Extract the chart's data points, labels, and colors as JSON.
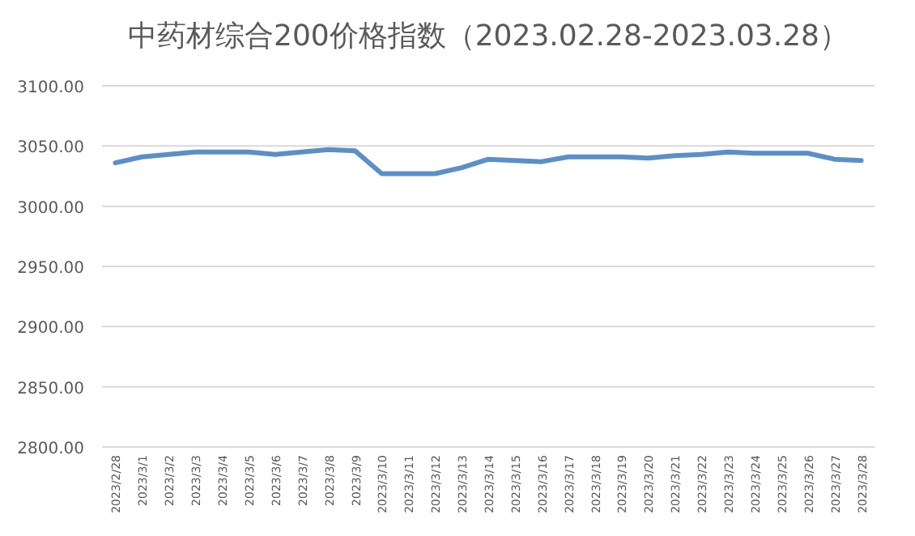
{
  "chart_data": {
    "type": "line",
    "title": "中药材综合200价格指数（2023.02.28-2023.03.28）",
    "categories": [
      "2023/2/28",
      "2023/3/1",
      "2023/3/2",
      "2023/3/3",
      "2023/3/4",
      "2023/3/5",
      "2023/3/6",
      "2023/3/7",
      "2023/3/8",
      "2023/3/9",
      "2023/3/10",
      "2023/3/11",
      "2023/3/12",
      "2023/3/13",
      "2023/3/14",
      "2023/3/15",
      "2023/3/16",
      "2023/3/17",
      "2023/3/18",
      "2023/3/19",
      "2023/3/20",
      "2023/3/21",
      "2023/3/22",
      "2023/3/23",
      "2023/3/24",
      "2023/3/25",
      "2023/3/26",
      "2023/3/27",
      "2023/3/28"
    ],
    "series": [
      {
        "color": "#5b8fc7",
        "values": [
          3036,
          3041,
          3043,
          3045,
          3045,
          3045,
          3043,
          3045,
          3047,
          3046,
          3027,
          3027,
          3027,
          3032,
          3039,
          3038,
          3037,
          3041,
          3041,
          3041,
          3040,
          3042,
          3043,
          3045,
          3044,
          3044,
          3044,
          3039,
          3038
        ]
      }
    ],
    "ylim": [
      2800,
      3100
    ],
    "yticks": [
      {
        "value": 2800,
        "label": "2800.00"
      },
      {
        "value": 2850,
        "label": "2850.00"
      },
      {
        "value": 2900,
        "label": "2900.00"
      },
      {
        "value": 2950,
        "label": "2950.00"
      },
      {
        "value": 3000,
        "label": "3000.00"
      },
      {
        "value": 3050,
        "label": "3050.00"
      },
      {
        "value": 3100,
        "label": "3100.00"
      }
    ],
    "grid": "y",
    "marker": "none",
    "line_style": "solid"
  }
}
